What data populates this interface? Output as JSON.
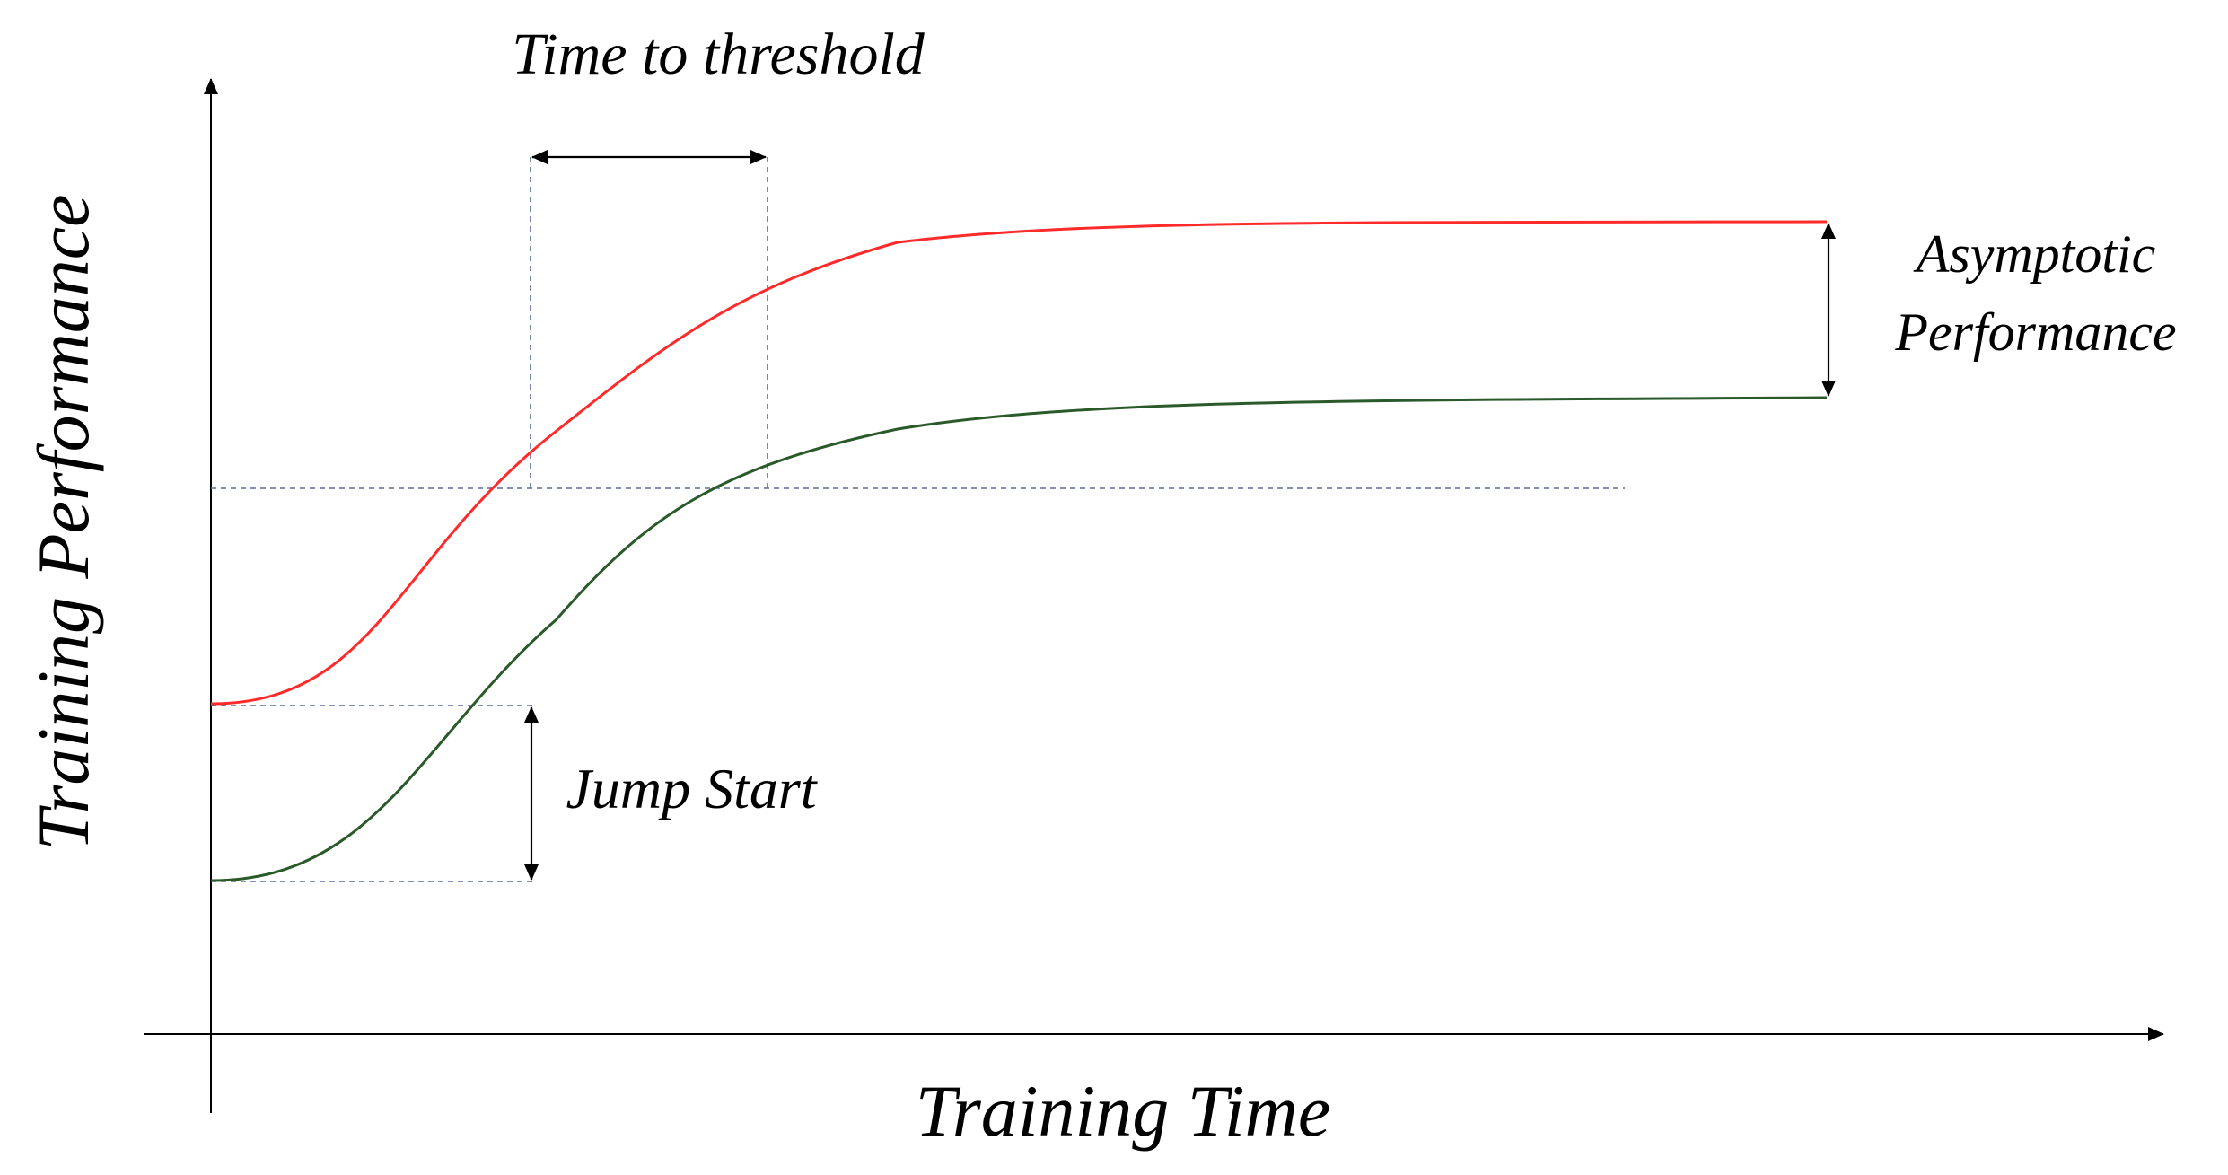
{
  "labels": {
    "y_axis": "Training Performance",
    "x_axis": "Training Time",
    "time_to_threshold": "Time to threshold",
    "asymptotic_line1": "Asymptotic",
    "asymptotic_line2": "Performance",
    "jump_start": "Jump Start"
  },
  "colors": {
    "axis": "#000000",
    "upper_curve": "#ff2a2a",
    "lower_curve": "#2a5a2a",
    "guide_lines": "#5a6a9a",
    "annotation_arrows": "#000000"
  }
}
